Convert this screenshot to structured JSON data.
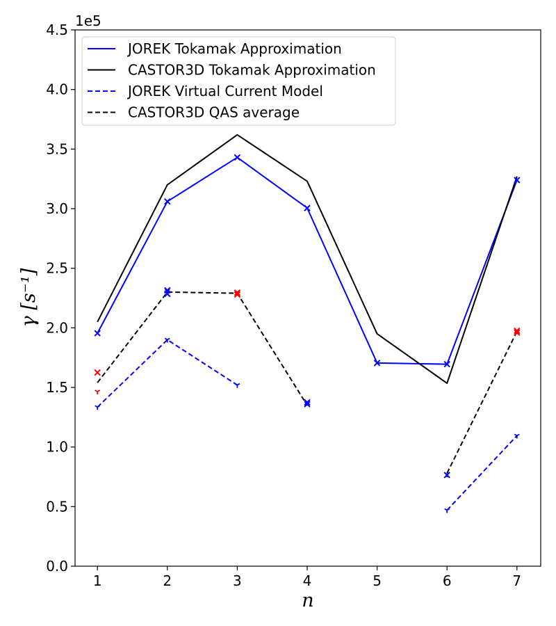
{
  "chart_data": {
    "type": "line",
    "title": "",
    "xlabel": "n",
    "ylabel": "γ [s⁻¹]",
    "offset_text": "1e5",
    "xlim": [
      0.68,
      7.34
    ],
    "ylim": [
      0.0,
      4.5
    ],
    "x_ticks": [
      1,
      2,
      3,
      4,
      5,
      6,
      7
    ],
    "y_ticks": [
      0.0,
      0.5,
      1.0,
      1.5,
      2.0,
      2.5,
      3.0,
      3.5,
      4.0,
      4.5
    ],
    "y_tick_labels": [
      "0.0",
      "0.5",
      "1.0",
      "1.5",
      "2.0",
      "2.5",
      "3.0",
      "3.5",
      "4.0",
      "4.5"
    ],
    "legend_position": "top-left",
    "series": [
      {
        "name": "JOREK Tokamak Approximation",
        "color": "#0000ff",
        "style": "solid",
        "marker": "x",
        "x": [
          1,
          2,
          3,
          4,
          5,
          6,
          7
        ],
        "y": [
          1.955,
          3.06,
          3.43,
          3.005,
          1.705,
          1.695,
          3.24
        ]
      },
      {
        "name": "CASTOR3D Tokamak Approximation",
        "color": "#000000",
        "style": "solid",
        "marker": "none",
        "x": [
          1,
          2,
          3,
          4,
          5,
          6,
          7
        ],
        "y": [
          2.05,
          3.2,
          3.62,
          3.23,
          1.95,
          1.535,
          3.27
        ]
      },
      {
        "name": "JOREK Virtual Current Model",
        "color": "#0000ff",
        "style": "dashed",
        "marker": "tri",
        "segments": [
          {
            "x": [
              1,
              2,
              3
            ],
            "y": [
              1.335,
              1.9,
              1.52
            ]
          },
          {
            "x": [
              6,
              7
            ],
            "y": [
              0.47,
              1.095
            ]
          }
        ]
      },
      {
        "name": "CASTOR3D QAS average",
        "color": "#000000",
        "style": "dashed",
        "marker": "none",
        "segments": [
          {
            "x": [
              1,
              2,
              3,
              4
            ],
            "y": [
              1.54,
              2.3,
              2.29,
              1.35
            ]
          },
          {
            "x": [
              6,
              7
            ],
            "y": [
              0.78,
              1.97
            ]
          }
        ]
      }
    ],
    "extra_markers": [
      {
        "color": "#0000ff",
        "marker": "x",
        "x": [
          2,
          2,
          4,
          4,
          6
        ],
        "y": [
          2.315,
          2.285,
          1.375,
          1.36,
          0.765
        ]
      },
      {
        "color": "#ff0000",
        "marker": "x",
        "x": [
          1,
          3,
          3,
          7,
          7
        ],
        "y": [
          1.625,
          2.295,
          2.28,
          1.975,
          1.96
        ]
      },
      {
        "color": "#0000ff",
        "marker": "tri",
        "x": [
          2,
          4,
          6
        ],
        "y": [
          2.31,
          1.37,
          0.77
        ]
      },
      {
        "color": "#ff0000",
        "marker": "tri",
        "x": [
          1,
          3,
          7
        ],
        "y": [
          1.465,
          2.3,
          1.97
        ]
      }
    ]
  }
}
